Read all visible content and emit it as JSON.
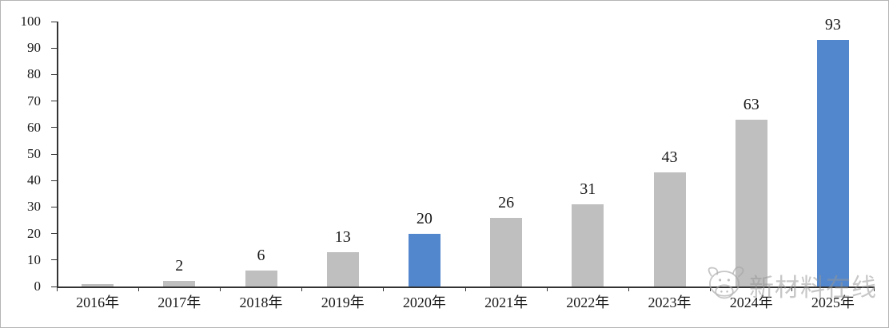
{
  "chart_data": {
    "type": "bar",
    "title": "",
    "xlabel": "",
    "ylabel": "",
    "categories": [
      "2016年",
      "2017年",
      "2018年",
      "2019年",
      "2020年",
      "2021年",
      "2022年",
      "2023年",
      "2024年",
      "2025年"
    ],
    "values": [
      1,
      2,
      6,
      13,
      20,
      26,
      31,
      43,
      63,
      93
    ],
    "data_labels": [
      "",
      "2",
      "6",
      "13",
      "20",
      "26",
      "31",
      "43",
      "63",
      "93"
    ],
    "highlight_indices": [
      4,
      9
    ],
    "ylim": [
      0,
      100
    ],
    "yticks": [
      0,
      10,
      20,
      30,
      40,
      50,
      60,
      70,
      80,
      90,
      100
    ],
    "grid": false,
    "legend": null,
    "colors": {
      "bar_default": "#bfbfbf",
      "bar_highlight": "#5287ce",
      "axis": "#333333",
      "text": "#1a1a1a"
    }
  },
  "watermark": {
    "text": "新材料在线",
    "logo": "calf-head-logo",
    "color": "#a8a8a8"
  }
}
